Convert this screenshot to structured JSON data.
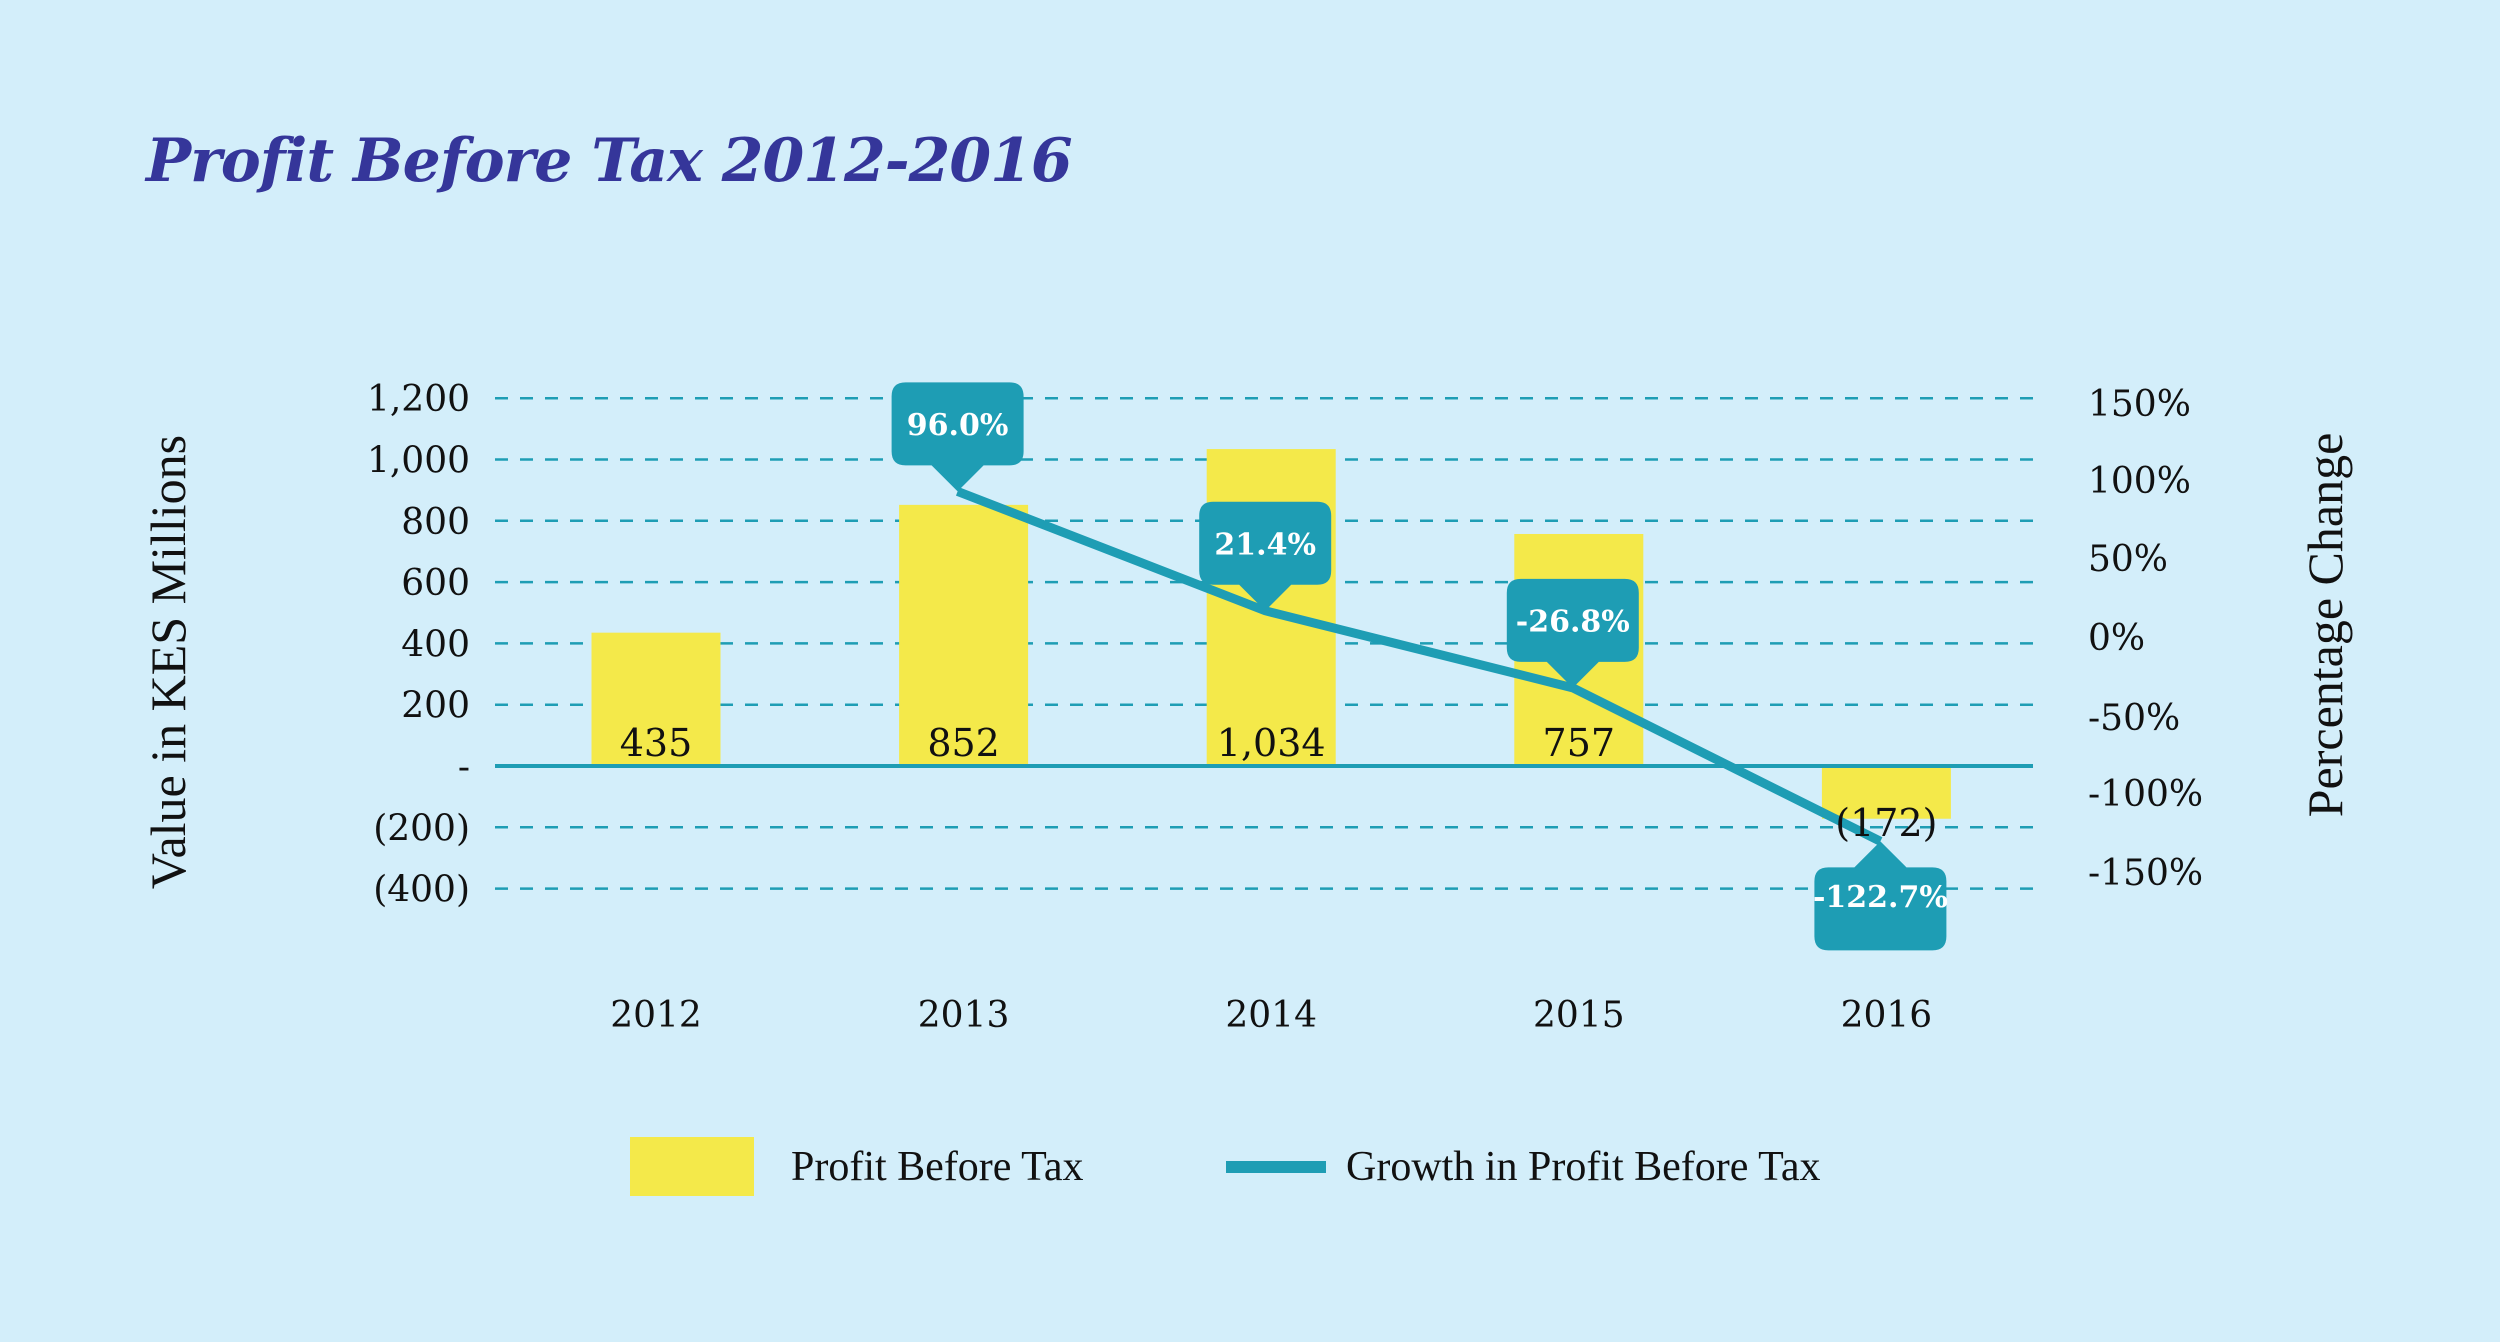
{
  "title": "Profit Before Tax 2012-2016",
  "colors": {
    "background": "#d3eefa",
    "bar": "#f4e94a",
    "line": "#1e9db4",
    "title": "#35369a",
    "callout_text": "#ffffff"
  },
  "chart_data": {
    "type": "bar",
    "title": "Profit Before Tax 2012-2016",
    "xlabel": "",
    "ylabel": "Value in KES Millions",
    "y2label": "Percentage Change",
    "categories": [
      "2012",
      "2013",
      "2014",
      "2015",
      "2016"
    ],
    "ylim": [
      -400,
      1200
    ],
    "y_ticks": [
      1200,
      1000,
      800,
      600,
      400,
      200,
      0,
      -200,
      -400
    ],
    "y_tick_labels": [
      "1,200",
      "1,000",
      "800",
      "600",
      "400",
      "200",
      "-",
      "(200)",
      "(400)"
    ],
    "y2lim": [
      -150,
      150
    ],
    "y2_ticks": [
      150,
      100,
      50,
      0,
      -50,
      -100,
      -150
    ],
    "y2_tick_labels": [
      "150%",
      "100%",
      "50%",
      "0%",
      "-50%",
      "-100%",
      "-150%"
    ],
    "grid": true,
    "grid_style": "dashed",
    "legend_position": "bottom",
    "series": [
      {
        "name": "Profit Before Tax",
        "type": "bar",
        "axis": "left",
        "values": [
          435,
          852,
          1034,
          757,
          -172
        ],
        "labels": [
          "435",
          "852",
          "1,034",
          "757",
          "(172)"
        ]
      },
      {
        "name": "Growth in Profit Before Tax",
        "type": "line",
        "axis": "right",
        "values": [
          null,
          96.0,
          21.4,
          -26.8,
          -122.7
        ],
        "labels": [
          "",
          "96.0%",
          "21.4%",
          "-26.8%",
          "-122.7%"
        ]
      }
    ]
  },
  "legend": [
    {
      "label": "Profit Before Tax",
      "icon": "yellow-square-swatch"
    },
    {
      "label": "Growth in Profit Before Tax",
      "icon": "teal-line-swatch"
    }
  ]
}
